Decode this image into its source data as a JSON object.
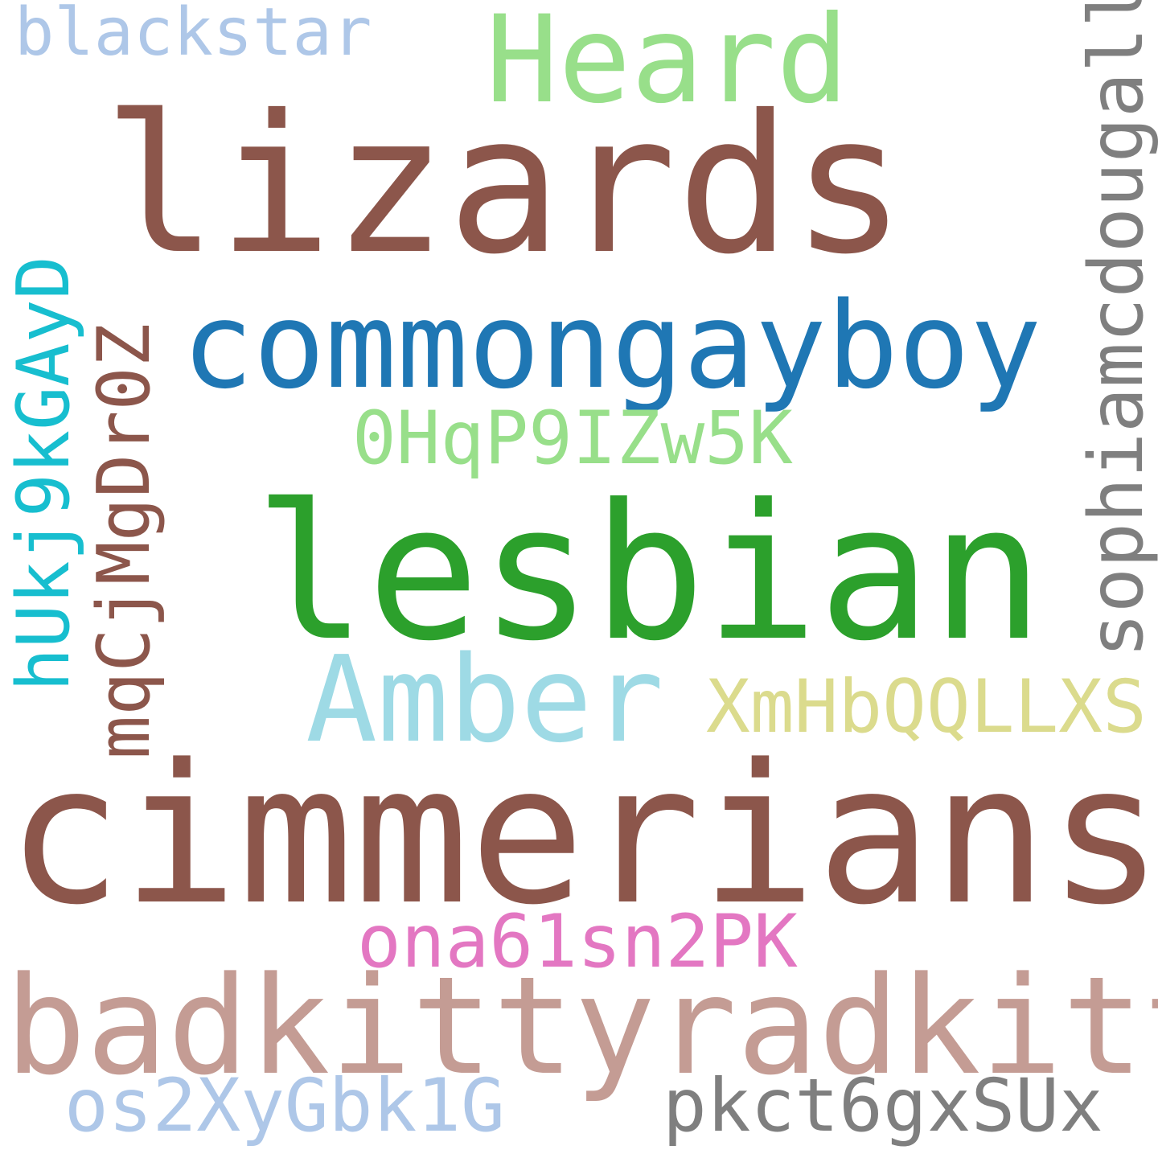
{
  "words": [
    {
      "id": "lizards",
      "text": "lizards",
      "color": "#8c564b"
    },
    {
      "id": "cimmerians",
      "text": "cimmerians",
      "color": "#8c564b"
    },
    {
      "id": "lesbian",
      "text": "lesbian",
      "color": "#2ca02c"
    },
    {
      "id": "commongayboy",
      "text": "commongayboy",
      "color": "#1f77b4"
    },
    {
      "id": "badkittyradkitty",
      "text": "badkittyradkitty",
      "color": "#c49c94"
    },
    {
      "id": "heard",
      "text": "Heard",
      "color": "#98df8a"
    },
    {
      "id": "amber",
      "text": "Amber",
      "color": "#9edae5"
    },
    {
      "id": "sophiamcdougall",
      "text": "sophiamcdougall",
      "color": "#7f7f7f"
    },
    {
      "id": "hukj9kgayd",
      "text": "hUkj9kGAyD",
      "color": "#17becf"
    },
    {
      "id": "mqcjmgdr0z",
      "text": "mqCjMgDr0Z",
      "color": "#8c564b"
    },
    {
      "id": "0hqp9izw5k",
      "text": "0HqP9IZw5K",
      "color": "#98df8a"
    },
    {
      "id": "xmhbqqllxs",
      "text": "XmHbQQLLXS",
      "color": "#dbdb8d"
    },
    {
      "id": "blackstar",
      "text": "blackstar",
      "color": "#aec7e8"
    },
    {
      "id": "ona61sn2pk",
      "text": "ona61sn2PK",
      "color": "#e377c2"
    },
    {
      "id": "os2xygbk1g",
      "text": "os2XyGbk1G",
      "color": "#aec7e8"
    },
    {
      "id": "pkct6gxsux",
      "text": "pkct6gxSUx",
      "color": "#7f7f7f"
    }
  ]
}
